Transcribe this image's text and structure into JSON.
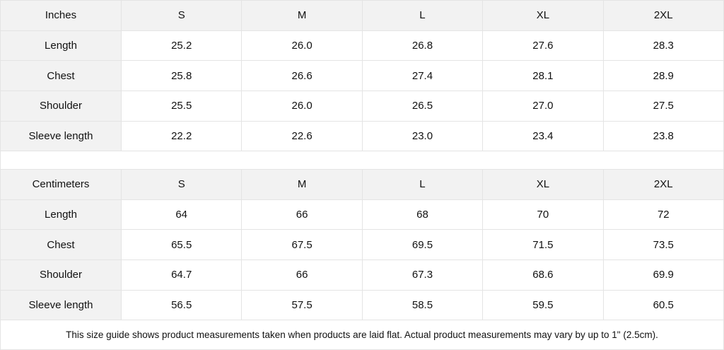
{
  "tables": [
    {
      "unit": "Inches",
      "sizes": [
        "S",
        "M",
        "L",
        "XL",
        "2XL"
      ],
      "rows": [
        {
          "label": "Length",
          "values": [
            "25.2",
            "26.0",
            "26.8",
            "27.6",
            "28.3"
          ]
        },
        {
          "label": "Chest",
          "values": [
            "25.8",
            "26.6",
            "27.4",
            "28.1",
            "28.9"
          ]
        },
        {
          "label": "Shoulder",
          "values": [
            "25.5",
            "26.0",
            "26.5",
            "27.0",
            "27.5"
          ]
        },
        {
          "label": "Sleeve length",
          "values": [
            "22.2",
            "22.6",
            "23.0",
            "23.4",
            "23.8"
          ]
        }
      ]
    },
    {
      "unit": "Centimeters",
      "sizes": [
        "S",
        "M",
        "L",
        "XL",
        "2XL"
      ],
      "rows": [
        {
          "label": "Length",
          "values": [
            "64",
            "66",
            "68",
            "70",
            "72"
          ]
        },
        {
          "label": "Chest",
          "values": [
            "65.5",
            "67.5",
            "69.5",
            "71.5",
            "73.5"
          ]
        },
        {
          "label": "Shoulder",
          "values": [
            "64.7",
            "66",
            "67.3",
            "68.6",
            "69.9"
          ]
        },
        {
          "label": "Sleeve length",
          "values": [
            "56.5",
            "57.5",
            "58.5",
            "59.5",
            "60.5"
          ]
        }
      ]
    }
  ],
  "note": "This size guide shows product measurements taken when products are laid flat.  Actual product measurements may vary by up to 1\" (2.5cm)."
}
